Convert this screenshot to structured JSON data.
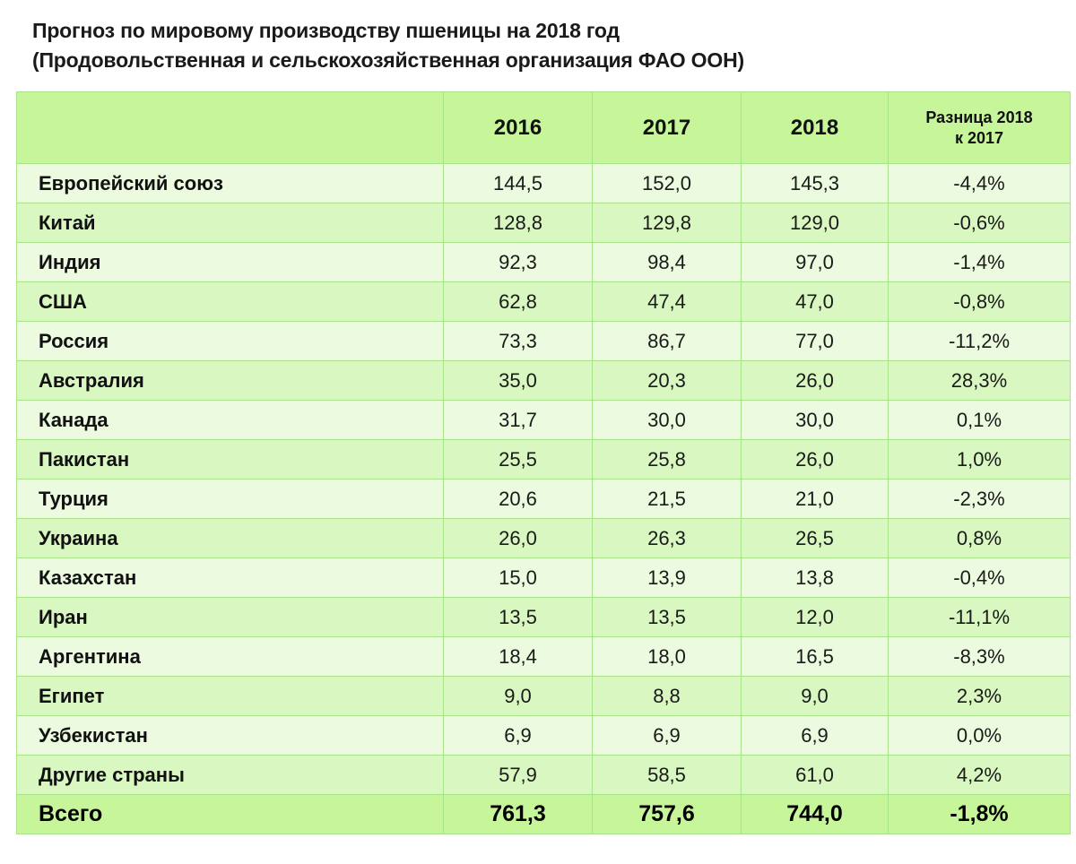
{
  "title": {
    "line1": "Прогноз по мировому производству пшеницы на 2018 год",
    "line2": "(Продовольственная и сельскохозяйственная организация ФАО ООН)"
  },
  "table": {
    "headers": [
      "",
      "2016",
      "2017",
      "2018",
      "Разница 2018",
      "к 2017"
    ],
    "rows": [
      {
        "name": "Европейский союз",
        "y2016": "144,5",
        "y2017": "152,0",
        "y2018": "145,3",
        "diff": "-4,4%"
      },
      {
        "name": "Китай",
        "y2016": "128,8",
        "y2017": "129,8",
        "y2018": "129,0",
        "diff": "-0,6%"
      },
      {
        "name": "Индия",
        "y2016": "92,3",
        "y2017": "98,4",
        "y2018": "97,0",
        "diff": "-1,4%"
      },
      {
        "name": "США",
        "y2016": "62,8",
        "y2017": "47,4",
        "y2018": "47,0",
        "diff": "-0,8%"
      },
      {
        "name": "Россия",
        "y2016": "73,3",
        "y2017": "86,7",
        "y2018": "77,0",
        "diff": "-11,2%"
      },
      {
        "name": "Австралия",
        "y2016": "35,0",
        "y2017": "20,3",
        "y2018": "26,0",
        "diff": "28,3%"
      },
      {
        "name": "Канада",
        "y2016": "31,7",
        "y2017": "30,0",
        "y2018": "30,0",
        "diff": "0,1%"
      },
      {
        "name": "Пакистан",
        "y2016": "25,5",
        "y2017": "25,8",
        "y2018": "26,0",
        "diff": "1,0%"
      },
      {
        "name": "Турция",
        "y2016": "20,6",
        "y2017": "21,5",
        "y2018": "21,0",
        "diff": "-2,3%"
      },
      {
        "name": "Украина",
        "y2016": "26,0",
        "y2017": "26,3",
        "y2018": "26,5",
        "diff": "0,8%"
      },
      {
        "name": "Казахстан",
        "y2016": "15,0",
        "y2017": "13,9",
        "y2018": "13,8",
        "diff": "-0,4%"
      },
      {
        "name": "Иран",
        "y2016": "13,5",
        "y2017": "13,5",
        "y2018": "12,0",
        "diff": "-11,1%"
      },
      {
        "name": "Аргентина",
        "y2016": "18,4",
        "y2017": "18,0",
        "y2018": "16,5",
        "diff": "-8,3%"
      },
      {
        "name": "Египет",
        "y2016": "9,0",
        "y2017": "8,8",
        "y2018": "9,0",
        "diff": "2,3%"
      },
      {
        "name": "Узбекистан",
        "y2016": "6,9",
        "y2017": "6,9",
        "y2018": "6,9",
        "diff": "0,0%"
      },
      {
        "name": "Другие страны",
        "y2016": "57,9",
        "y2017": "58,5",
        "y2018": "61,0",
        "diff": "4,2%"
      }
    ],
    "total": {
      "name": "Всего",
      "y2016": "761,3",
      "y2017": "757,6",
      "y2018": "744,0",
      "diff": "-1,8%"
    }
  },
  "colors": {
    "header_bg": "#c6f59a",
    "row_light": "#ecfadf",
    "row_dark": "#d9f7c0",
    "border": "#a8e38a"
  }
}
